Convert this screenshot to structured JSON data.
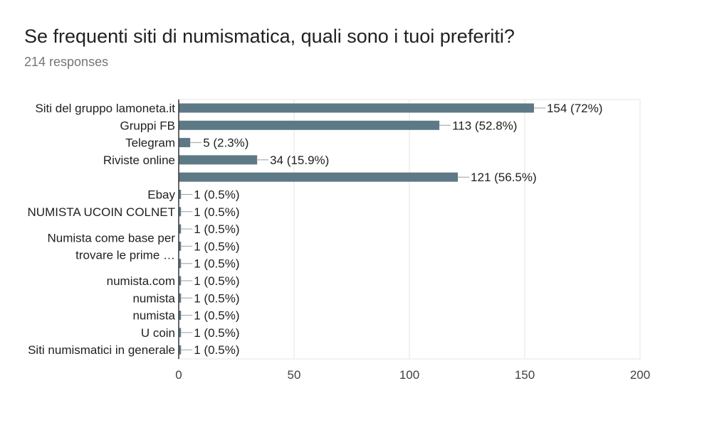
{
  "title": "Se frequenti siti di numismatica, quali sono i tuoi preferiti?",
  "subtitle": "214 responses",
  "colors": {
    "bar": "#5e7986",
    "grid": "#e6e6e6",
    "axis": "#333333",
    "leader": "#9e9e9e"
  },
  "chart_data": {
    "type": "bar",
    "orientation": "horizontal",
    "title": "Se frequenti siti di numismatica, quali sono i tuoi preferiti?",
    "xlim": [
      0,
      200
    ],
    "xticks": [
      0,
      50,
      100,
      150,
      200
    ],
    "grid": true,
    "rows": [
      {
        "category": "Siti del gruppo lamoneta.it",
        "value": 154,
        "label": "154 (72%)"
      },
      {
        "category": "Gruppi FB",
        "value": 113,
        "label": "113 (52.8%)"
      },
      {
        "category": "Telegram",
        "value": 5,
        "label": "5 (2.3%)"
      },
      {
        "category": "Riviste online",
        "value": 34,
        "label": "34 (15.9%)"
      },
      {
        "category": "",
        "value": 121,
        "label": "121 (56.5%)"
      },
      {
        "category": "Ebay",
        "value": 1,
        "label": "1 (0.5%)"
      },
      {
        "category": "NUMISTA UCOIN COLNET",
        "value": 1,
        "label": "1 (0.5%)"
      },
      {
        "category": "",
        "value": 1,
        "label": "1 (0.5%)"
      },
      {
        "category": "",
        "value": 1,
        "label": "1 (0.5%)"
      },
      {
        "category": "",
        "value": 1,
        "label": "1 (0.5%)"
      },
      {
        "category": "numista.com",
        "value": 1,
        "label": "1 (0.5%)"
      },
      {
        "category": "numista",
        "value": 1,
        "label": "1 (0.5%)"
      },
      {
        "category": "numista",
        "value": 1,
        "label": "1 (0.5%)"
      },
      {
        "category": "U coin",
        "value": 1,
        "label": "1 (0.5%)"
      },
      {
        "category": "Siti numismatici in generale",
        "value": 1,
        "label": "1 (0.5%)"
      }
    ],
    "multiline_labels": [
      {
        "text": "Numista come base per",
        "rows": [
          7,
          8
        ]
      },
      {
        "text": "trovare le prime …",
        "rows": [
          8,
          9
        ]
      }
    ]
  }
}
